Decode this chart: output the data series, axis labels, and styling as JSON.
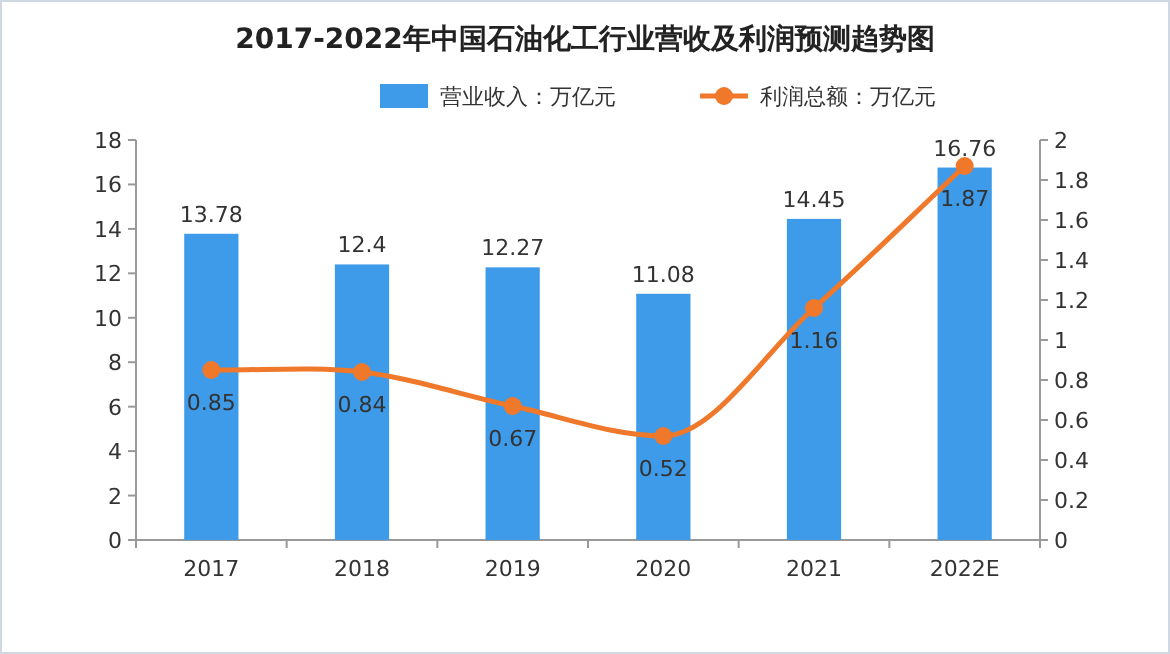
{
  "chart_data": {
    "type": "bar",
    "title": "2017-2022年中国石油化工行业营收及利润预测趋势图",
    "categories": [
      "2017",
      "2018",
      "2019",
      "2020",
      "2021",
      "2022E"
    ],
    "series": [
      {
        "name": "营业收入：万亿元",
        "color": "#3d9be9",
        "values": [
          13.78,
          12.4,
          12.27,
          11.08,
          14.45,
          16.76
        ]
      },
      {
        "name": "利润总额：万亿元",
        "color": "#f0782a",
        "type": "line",
        "axis": "y2",
        "values": [
          0.85,
          0.84,
          0.67,
          0.52,
          1.16,
          1.87
        ]
      }
    ],
    "ylim": [
      0,
      18
    ],
    "yticks": [
      0,
      2,
      4,
      6,
      8,
      10,
      12,
      14,
      16,
      18
    ],
    "y2lim": [
      0,
      2
    ],
    "y2ticks": [
      0,
      0.2,
      0.4,
      0.6,
      0.8,
      1,
      1.2,
      1.4,
      1.6,
      1.8,
      2
    ],
    "marker": "circle",
    "legend": "top",
    "data_labels": true,
    "grid": false
  }
}
